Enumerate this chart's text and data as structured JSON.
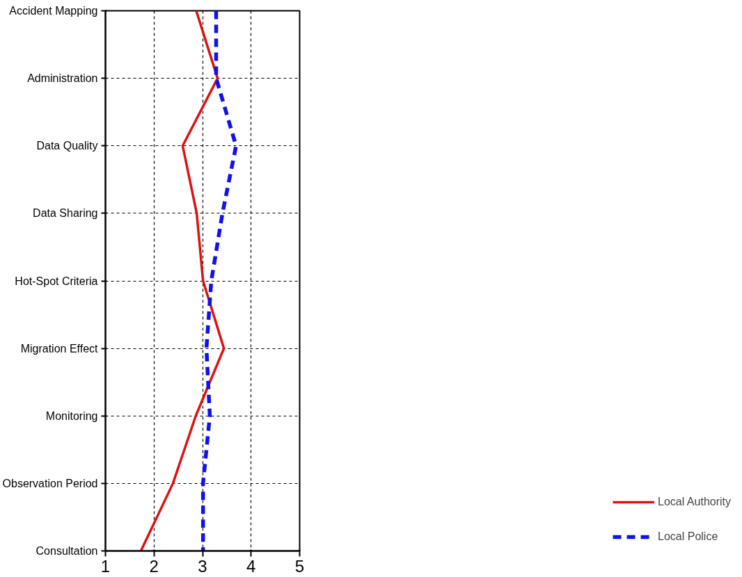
{
  "chart_data": {
    "type": "line",
    "orientation": "horizontal",
    "categories": [
      "Accident Mapping",
      "Administration",
      "Data Quality",
      "Data Sharing",
      "Hot-Spot Criteria",
      "Migration Effect",
      "Monitoring",
      "Observation Period",
      "Consultation"
    ],
    "series": [
      {
        "name": "Local Authority",
        "color": "#dd1111",
        "line_style": "solid",
        "values": [
          2.87,
          3.31,
          2.59,
          2.88,
          3.01,
          3.44,
          2.86,
          2.39,
          1.73
        ]
      },
      {
        "name": "Local Police",
        "color": "#1111ee",
        "line_style": "dashed",
        "values": [
          3.28,
          3.28,
          3.69,
          3.41,
          3.18,
          3.08,
          3.15,
          3.01,
          3.01
        ]
      }
    ],
    "xlim": [
      1,
      5
    ],
    "xticks": [
      1,
      2,
      3,
      4,
      5
    ],
    "grid": true,
    "legend": "bottom right",
    "marker": "none"
  }
}
